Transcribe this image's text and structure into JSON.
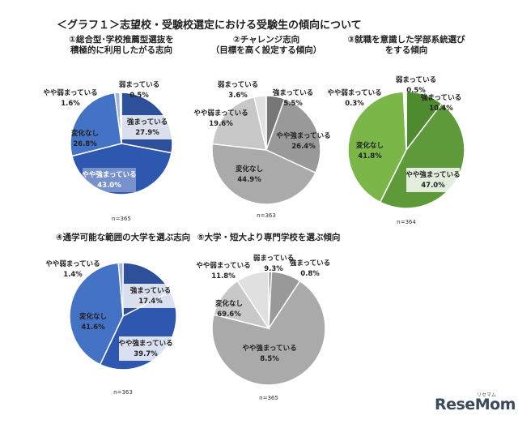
{
  "title": "＜グラフ１＞志望校・受験校選定における受験生の傾向について",
  "watermark": {
    "main": "ReseMom",
    "sub": "リセマム"
  },
  "chart_data": [
    {
      "type": "pie",
      "title_lines": [
        "①総合型･学校推薦型選抜を",
        "積極的に利用したがる志向"
      ],
      "note": "n=365",
      "slices": [
        {
          "label": "強まっている",
          "value": 27.9,
          "value_text": "27.9%",
          "color": "#2e4f9a",
          "text": "dark",
          "box": true
        },
        {
          "label": "やや強まっている",
          "value": 43.0,
          "value_text": "43.0%",
          "color": "#2e58b0",
          "text": "light",
          "box": true
        },
        {
          "label": "変化なし",
          "value": 26.8,
          "value_text": "26.8%",
          "color": "#4472c4",
          "text": "dark",
          "box": false
        },
        {
          "label": "やや弱まっている",
          "value": 1.6,
          "value_text": "1.6%",
          "color": "#9fb5e0",
          "text": "dark",
          "box": false
        },
        {
          "label": "弱まっている",
          "value": 0.5,
          "value_text": "0.5%",
          "color": "#d5def2",
          "text": "dark",
          "box": false
        }
      ]
    },
    {
      "type": "pie",
      "title_lines": [
        "②チャレンジ志向",
        "（目標を高く設定する傾向）"
      ],
      "note": "n=363",
      "slices": [
        {
          "label": "強まっている",
          "value": 5.5,
          "value_text": "5.5%",
          "color": "#777777",
          "text": "dark",
          "box": false
        },
        {
          "label": "やや強まっている",
          "value": 26.4,
          "value_text": "26.4%",
          "color": "#999999",
          "text": "dark",
          "box": false
        },
        {
          "label": "変化なし",
          "value": 44.9,
          "value_text": "44.9%",
          "color": "#aaaaaa",
          "text": "dark",
          "box": false
        },
        {
          "label": "やや弱まっている",
          "value": 19.6,
          "value_text": "19.6%",
          "color": "#c8c8c8",
          "text": "dark",
          "box": false
        },
        {
          "label": "弱まっている",
          "value": 3.6,
          "value_text": "3.6%",
          "color": "#e0e0e0",
          "text": "dark",
          "box": false
        }
      ]
    },
    {
      "type": "pie",
      "title_lines": [
        "③就職を意識した学部系統選び",
        "をする傾向"
      ],
      "note": "n=364",
      "slices": [
        {
          "label": "強まっている",
          "value": 10.4,
          "value_text": "10.4%",
          "color": "#4e8a2e",
          "text": "dark",
          "box": false
        },
        {
          "label": "やや強まっている",
          "value": 47.0,
          "value_text": "47.0%",
          "color": "#5f9a3a",
          "text": "dark",
          "box": true
        },
        {
          "label": "変化なし",
          "value": 41.8,
          "value_text": "41.8%",
          "color": "#7ab648",
          "text": "dark",
          "box": false
        },
        {
          "label": "やや弱まっている",
          "value": 0.3,
          "value_text": "0.3%",
          "color": "#a9d18e",
          "text": "dark",
          "box": false
        },
        {
          "label": "弱まっている",
          "value": 0.5,
          "value_text": "0.5%",
          "color": "#d6eac7",
          "text": "dark",
          "box": false
        }
      ]
    },
    {
      "type": "pie",
      "title_lines": [
        "④通学可能な範囲の大学を選ぶ志向"
      ],
      "note": "n=363",
      "slices": [
        {
          "label": "強まっている",
          "value": 17.4,
          "value_text": "17.4%",
          "color": "#2e4f9a",
          "text": "dark",
          "box": true
        },
        {
          "label": "やや強まっている",
          "value": 39.7,
          "value_text": "39.7%",
          "color": "#2e58b0",
          "text": "dark",
          "box": true
        },
        {
          "label": "変化なし",
          "value": 41.6,
          "value_text": "41.6%",
          "color": "#4472c4",
          "text": "dark",
          "box": false
        },
        {
          "label": "やや弱まっている",
          "value": 1.4,
          "value_text": "1.4%",
          "color": "#9fb5e0",
          "text": "dark",
          "box": false
        }
      ]
    },
    {
      "type": "pie",
      "title_lines": [
        "⑤大学・短大より専門学校を選ぶ傾向"
      ],
      "note": "n=365",
      "slices": [
        {
          "label": "強まっている",
          "value": 0.8,
          "value_text": "0.8%",
          "color": "#777777",
          "text": "dark",
          "box": false
        },
        {
          "label": "やや強まっている",
          "value": 8.5,
          "value_text": "8.5%",
          "color": "#999999",
          "text": "dark",
          "box": false
        },
        {
          "label": "変化なし",
          "value": 69.6,
          "value_text": "69.6%",
          "color": "#aaaaaa",
          "text": "dark",
          "box": false
        },
        {
          "label": "やや弱まっている",
          "value": 11.8,
          "value_text": "11.8%",
          "color": "#c8c8c8",
          "text": "dark",
          "box": false
        },
        {
          "label": "弱まっている",
          "value": 9.3,
          "value_text": "9.3%",
          "color": "#e0e0e0",
          "text": "dark",
          "box": false
        }
      ]
    }
  ]
}
